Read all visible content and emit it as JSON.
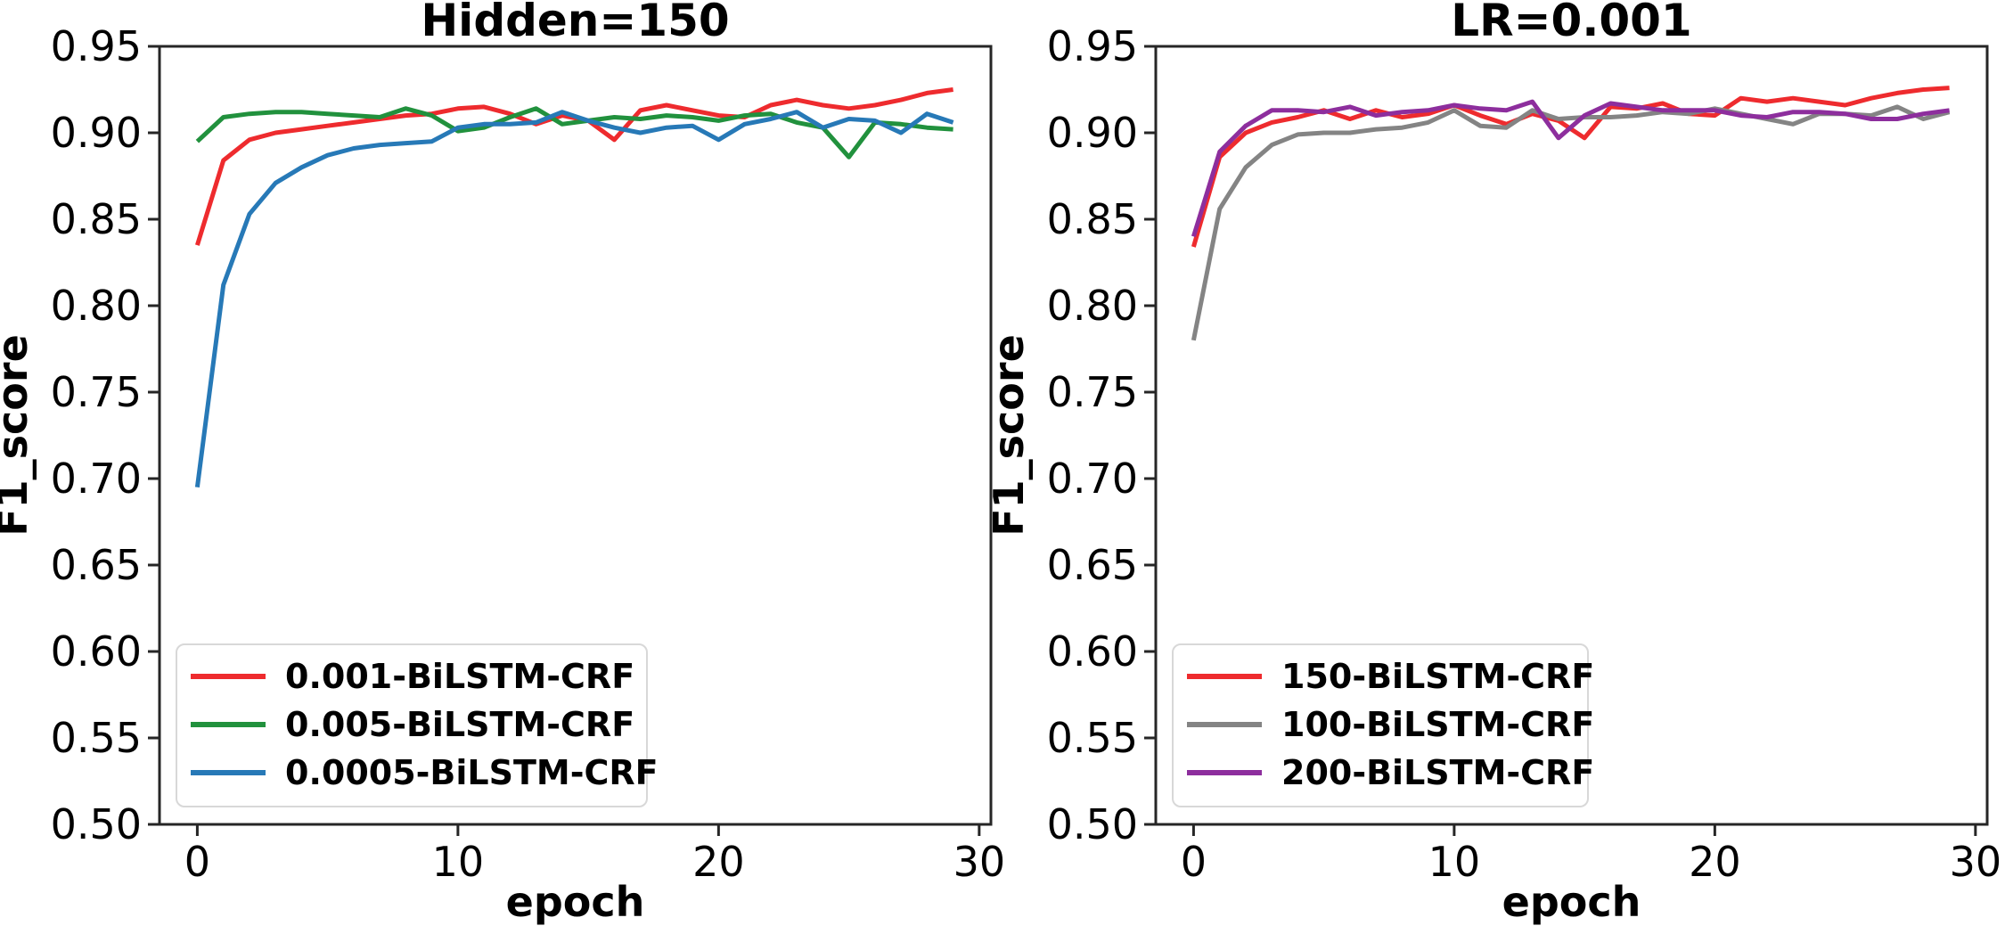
{
  "figure": {
    "background": "#ffffff",
    "axis_color": "#262626",
    "text_color": "#000000"
  },
  "chart_data": [
    {
      "type": "line",
      "title": "Hidden=150",
      "xlabel": "epoch",
      "ylabel": "F1_score",
      "xlim": [
        -1.45,
        30.45
      ],
      "ylim": [
        0.5,
        0.95
      ],
      "xticks": [
        "0",
        "10",
        "20",
        "30"
      ],
      "yticks": [
        "0.50",
        "0.55",
        "0.60",
        "0.65",
        "0.70",
        "0.75",
        "0.80",
        "0.85",
        "0.90",
        "0.95"
      ],
      "grid": false,
      "legend_position": "lower left",
      "x": [
        0,
        1,
        2,
        3,
        4,
        5,
        6,
        7,
        8,
        9,
        10,
        11,
        12,
        13,
        14,
        15,
        16,
        17,
        18,
        19,
        20,
        21,
        22,
        23,
        24,
        25,
        26,
        27,
        28,
        29
      ],
      "series": [
        {
          "name": "0.001-BiLSTM-CRF",
          "color": "#ee2b2e",
          "values": [
            0.835,
            0.884,
            0.896,
            0.9,
            0.902,
            0.904,
            0.906,
            0.908,
            0.91,
            0.911,
            0.914,
            0.915,
            0.911,
            0.905,
            0.91,
            0.907,
            0.896,
            0.913,
            0.916,
            0.913,
            0.91,
            0.909,
            0.916,
            0.919,
            0.916,
            0.914,
            0.916,
            0.919,
            0.923,
            0.925
          ]
        },
        {
          "name": "0.005-BiLSTM-CRF",
          "color": "#21913d",
          "values": [
            0.895,
            0.909,
            0.911,
            0.912,
            0.912,
            0.911,
            0.91,
            0.909,
            0.914,
            0.91,
            0.901,
            0.903,
            0.909,
            0.914,
            0.905,
            0.907,
            0.909,
            0.908,
            0.91,
            0.909,
            0.907,
            0.91,
            0.911,
            0.906,
            0.903,
            0.886,
            0.906,
            0.905,
            0.903,
            0.902
          ]
        },
        {
          "name": "0.0005-BiLSTM-CRF",
          "color": "#2779b7",
          "values": [
            0.695,
            0.812,
            0.853,
            0.871,
            0.88,
            0.887,
            0.891,
            0.893,
            0.894,
            0.895,
            0.903,
            0.905,
            0.905,
            0.906,
            0.912,
            0.907,
            0.903,
            0.9,
            0.903,
            0.904,
            0.896,
            0.905,
            0.908,
            0.912,
            0.903,
            0.908,
            0.907,
            0.9,
            0.911,
            0.906
          ]
        }
      ]
    },
    {
      "type": "line",
      "title": "LR=0.001",
      "xlabel": "epoch",
      "ylabel": "F1_score",
      "xlim": [
        -1.45,
        30.45
      ],
      "ylim": [
        0.5,
        0.95
      ],
      "xticks": [
        "0",
        "10",
        "20",
        "30"
      ],
      "yticks": [
        "0.50",
        "0.55",
        "0.60",
        "0.65",
        "0.70",
        "0.75",
        "0.80",
        "0.85",
        "0.90",
        "0.95"
      ],
      "grid": false,
      "legend_position": "lower left",
      "x": [
        0,
        1,
        2,
        3,
        4,
        5,
        6,
        7,
        8,
        9,
        10,
        11,
        12,
        13,
        14,
        15,
        16,
        17,
        18,
        19,
        20,
        21,
        22,
        23,
        24,
        25,
        26,
        27,
        28,
        29
      ],
      "series": [
        {
          "name": "150-BiLSTM-CRF",
          "color": "#ee2b2e",
          "values": [
            0.834,
            0.886,
            0.9,
            0.906,
            0.909,
            0.913,
            0.908,
            0.913,
            0.909,
            0.911,
            0.916,
            0.91,
            0.905,
            0.911,
            0.907,
            0.897,
            0.915,
            0.914,
            0.917,
            0.911,
            0.91,
            0.92,
            0.918,
            0.92,
            0.918,
            0.916,
            0.92,
            0.923,
            0.925,
            0.926
          ]
        },
        {
          "name": "100-BiLSTM-CRF",
          "color": "#848484",
          "values": [
            0.78,
            0.856,
            0.88,
            0.893,
            0.899,
            0.9,
            0.9,
            0.902,
            0.903,
            0.906,
            0.913,
            0.904,
            0.903,
            0.913,
            0.908,
            0.909,
            0.909,
            0.91,
            0.912,
            0.911,
            0.914,
            0.911,
            0.908,
            0.905,
            0.911,
            0.911,
            0.91,
            0.915,
            0.908,
            0.912
          ]
        },
        {
          "name": "200-BiLSTM-CRF",
          "color": "#8d2e9d",
          "values": [
            0.84,
            0.889,
            0.904,
            0.913,
            0.913,
            0.912,
            0.915,
            0.91,
            0.912,
            0.913,
            0.916,
            0.914,
            0.913,
            0.918,
            0.897,
            0.91,
            0.917,
            0.915,
            0.913,
            0.913,
            0.913,
            0.91,
            0.909,
            0.912,
            0.912,
            0.911,
            0.908,
            0.908,
            0.911,
            0.913
          ]
        }
      ]
    }
  ]
}
